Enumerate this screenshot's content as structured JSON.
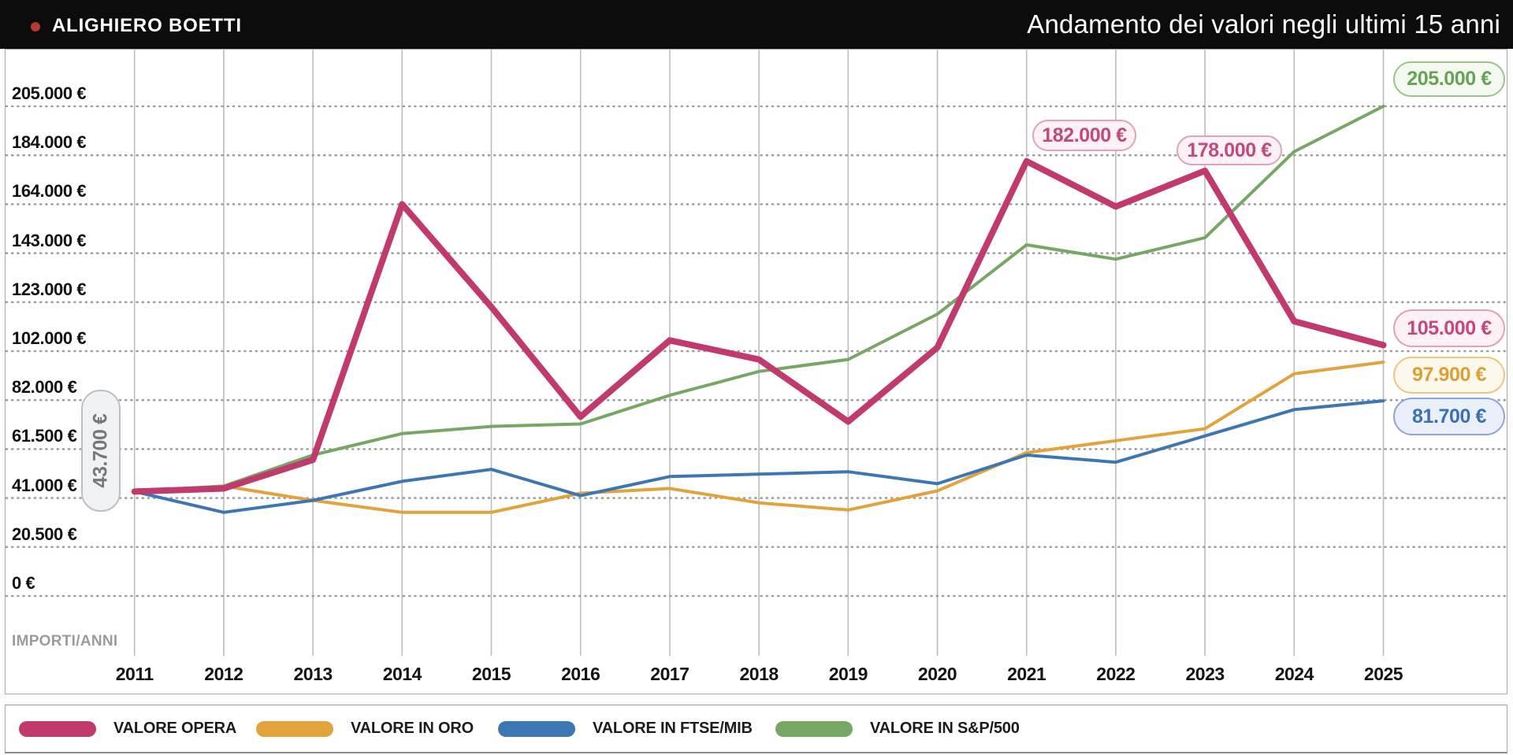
{
  "header": {
    "artist": "ALIGHIERO BOETTI",
    "subtitle": "Andamento dei valori negli ultimi 15 anni"
  },
  "axis": {
    "note": "IMPORTI/ANNI",
    "y_tick_labels": [
      "0 €",
      "20.500 €",
      "41.000 €",
      "61.500 €",
      "82.000 €",
      "102.000 €",
      "123.000 €",
      "143.000 €",
      "164.000 €",
      "184.000 €",
      "205.000 €"
    ],
    "year_labels": [
      "2011",
      "2012",
      "2013",
      "2014",
      "2015",
      "2016",
      "2017",
      "2018",
      "2019",
      "2020",
      "2021",
      "2022",
      "2023",
      "2024",
      "2025"
    ]
  },
  "chart_data": {
    "type": "line",
    "title": "Andamento dei valori negli ultimi 15 anni",
    "x": [
      2011,
      2012,
      2013,
      2014,
      2015,
      2016,
      2017,
      2018,
      2019,
      2020,
      2021,
      2022,
      2023,
      2024,
      2025
    ],
    "xlabel": "ANNI",
    "ylabel": "IMPORTI",
    "ylim": [
      0,
      205000
    ],
    "y_tick_step": 20500,
    "grid": {
      "horizontal": "dotted",
      "vertical": "solid"
    },
    "legend_position": "bottom",
    "series": [
      {
        "name": "VALORE OPERA",
        "color": "#c13a6e",
        "width": 8,
        "values": [
          43700,
          45000,
          57000,
          164000,
          121000,
          75000,
          107000,
          99000,
          73000,
          104000,
          182000,
          163000,
          178000,
          115000,
          105000
        ]
      },
      {
        "name": "VALORE IN ORO",
        "color": "#e2a23d",
        "width": 4,
        "values": [
          43700,
          46000,
          40000,
          35000,
          35000,
          43000,
          45000,
          39000,
          36000,
          44000,
          60000,
          65000,
          70000,
          93000,
          97900
        ]
      },
      {
        "name": "VALORE IN FTSE/MIB",
        "color": "#3c77b4",
        "width": 4,
        "values": [
          43700,
          35000,
          40000,
          48000,
          53000,
          42000,
          50000,
          51000,
          52000,
          47000,
          59000,
          56000,
          67000,
          78000,
          81700
        ]
      },
      {
        "name": "VALORE IN S&P/500",
        "color": "#76a765",
        "width": 4,
        "values": [
          43700,
          46000,
          59000,
          68000,
          71000,
          72000,
          84000,
          94000,
          99000,
          118000,
          147000,
          141000,
          150000,
          186000,
          205000
        ]
      }
    ]
  },
  "callouts": [
    {
      "id": "start-value",
      "text": "43.700 €",
      "theme": "gray",
      "orientation": "vertical"
    },
    {
      "id": "peak-2021",
      "text": "182.000 €",
      "theme": "pink",
      "orientation": "horizontal"
    },
    {
      "id": "peak-2023",
      "text": "178.000 €",
      "theme": "pink",
      "orientation": "horizontal"
    },
    {
      "id": "end-sp500",
      "text": "205.000 €",
      "theme": "green",
      "orientation": "horizontal"
    },
    {
      "id": "end-opera",
      "text": "105.000 €",
      "theme": "pink",
      "orientation": "horizontal"
    },
    {
      "id": "end-oro",
      "text": "97.900 €",
      "theme": "orange",
      "orientation": "horizontal"
    },
    {
      "id": "end-ftse",
      "text": "81.700 €",
      "theme": "blue",
      "orientation": "horizontal"
    }
  ],
  "legend": {
    "items": [
      {
        "label": "VALORE OPERA",
        "color": "#c13a6e"
      },
      {
        "label": "VALORE IN ORO",
        "color": "#e2a23d"
      },
      {
        "label": "VALORE IN FTSE/MIB",
        "color": "#3c77b4"
      },
      {
        "label": "VALORE IN S&P/500",
        "color": "#76a765"
      }
    ]
  }
}
